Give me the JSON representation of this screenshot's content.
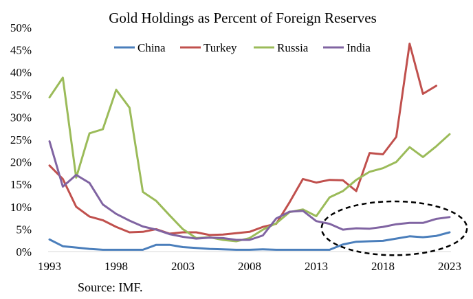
{
  "chart_data": {
    "type": "line",
    "title": "Gold Holdings as Percent of Foreign Reserves",
    "xlabel": "",
    "ylabel": "",
    "x_ticks": [
      "1993",
      "1998",
      "2003",
      "2008",
      "2013",
      "2018",
      "2023"
    ],
    "y_ticks": [
      "0%",
      "5%",
      "10%",
      "15%",
      "20%",
      "25%",
      "30%",
      "35%",
      "40%",
      "45%",
      "50%"
    ],
    "xlim": [
      1993,
      2023
    ],
    "ylim": [
      0,
      50
    ],
    "grid": false,
    "legend_position": "top",
    "x": [
      1993,
      1994,
      1995,
      1996,
      1997,
      1998,
      1999,
      2000,
      2001,
      2002,
      2003,
      2004,
      2005,
      2006,
      2007,
      2008,
      2009,
      2010,
      2011,
      2012,
      2013,
      2014,
      2015,
      2016,
      2017,
      2018,
      2019,
      2020,
      2021,
      2022,
      2023
    ],
    "series": [
      {
        "name": "China",
        "color": "#4a7ebb",
        "values": [
          2.7,
          1.2,
          0.9,
          0.6,
          0.4,
          0.4,
          0.4,
          0.4,
          1.5,
          1.5,
          1.0,
          0.8,
          0.6,
          0.5,
          0.4,
          0.4,
          0.5,
          0.4,
          0.4,
          0.4,
          0.4,
          0.4,
          1.6,
          2.2,
          2.3,
          2.4,
          2.9,
          3.4,
          3.2,
          3.5,
          4.3
        ]
      },
      {
        "name": "Turkey",
        "color": "#c0504d",
        "values": [
          19.2,
          16.2,
          10.0,
          7.8,
          7.0,
          5.5,
          4.3,
          4.4,
          5.0,
          4.0,
          4.3,
          4.3,
          3.7,
          3.8,
          4.1,
          4.4,
          5.5,
          6.2,
          11.0,
          16.2,
          15.4,
          16.0,
          15.9,
          13.5,
          22.0,
          21.7,
          25.6,
          46.4,
          35.2,
          37.0,
          null
        ]
      },
      {
        "name": "Russia",
        "color": "#9bbb59",
        "values": [
          34.4,
          38.8,
          16.5,
          26.4,
          27.3,
          36.1,
          32.1,
          13.3,
          11.3,
          8.1,
          5.0,
          3.0,
          3.2,
          2.6,
          2.3,
          3.0,
          4.9,
          6.3,
          8.8,
          9.4,
          7.9,
          12.1,
          13.5,
          16.0,
          17.8,
          18.6,
          20.0,
          23.3,
          21.1,
          23.5,
          26.2
        ]
      },
      {
        "name": "India",
        "color": "#8064a2",
        "values": [
          24.6,
          14.5,
          17.1,
          15.3,
          10.5,
          8.4,
          6.9,
          5.6,
          4.9,
          3.9,
          3.3,
          2.9,
          3.1,
          3.0,
          2.6,
          2.6,
          3.6,
          7.4,
          8.9,
          9.1,
          6.8,
          6.2,
          4.9,
          5.2,
          5.1,
          5.5,
          6.1,
          6.4,
          6.4,
          7.3,
          7.7
        ]
      }
    ],
    "annotation": {
      "shape": "dashed-ellipse",
      "color": "#000000",
      "x_range": [
        2013.4,
        2024.3
      ],
      "y_range": [
        -0.8,
        11.2
      ]
    }
  },
  "source_note": "Source: IMF."
}
